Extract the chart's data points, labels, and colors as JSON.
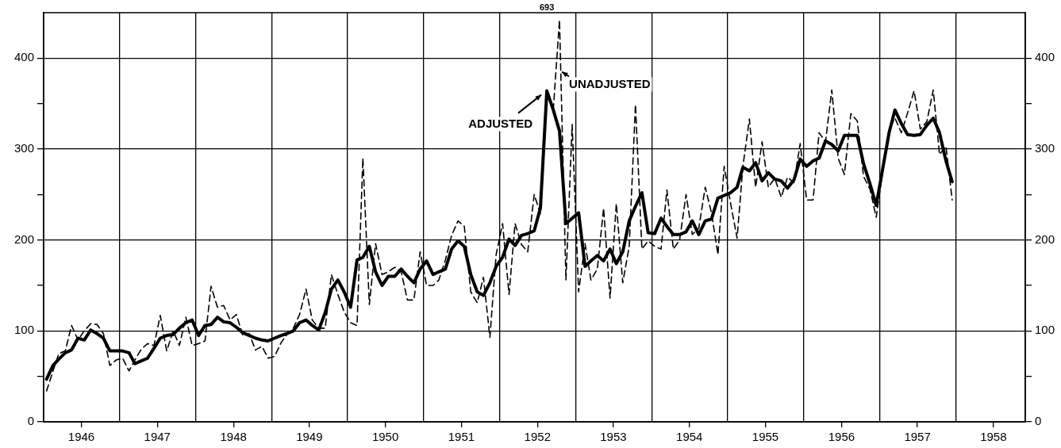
{
  "chart_data": {
    "type": "line",
    "x": [
      "1946-01-15",
      "1946-02-15",
      "1946-03-15",
      "1946-04-15",
      "1946-05-15",
      "1946-06-15",
      "1946-07-15",
      "1946-08-15",
      "1946-09-15",
      "1946-10-15",
      "1946-11-15",
      "1946-12-15",
      "1947-01-15",
      "1947-02-15",
      "1947-03-15",
      "1947-04-15",
      "1947-05-15",
      "1947-06-15",
      "1947-07-15",
      "1947-08-15",
      "1947-09-15",
      "1947-10-15",
      "1947-11-15",
      "1947-12-15",
      "1948-01-15",
      "1948-02-15",
      "1948-03-15",
      "1948-04-15",
      "1948-05-15",
      "1948-06-15",
      "1948-07-15",
      "1948-08-15",
      "1948-09-15",
      "1948-10-15",
      "1948-11-15",
      "1948-12-15",
      "1949-01-15",
      "1949-02-15",
      "1949-03-15",
      "1949-04-15",
      "1949-05-15",
      "1949-06-15",
      "1949-07-15",
      "1949-08-15",
      "1949-09-15",
      "1949-10-15",
      "1949-11-15",
      "1949-12-15",
      "1950-01-15",
      "1950-02-15",
      "1950-03-15",
      "1950-04-15",
      "1950-05-15",
      "1950-06-15",
      "1950-07-15",
      "1950-08-15",
      "1950-09-15",
      "1950-10-15",
      "1950-11-15",
      "1950-12-15",
      "1951-01-15",
      "1951-02-15",
      "1951-03-15",
      "1951-04-15",
      "1951-05-15",
      "1951-06-15",
      "1951-07-15",
      "1951-08-15",
      "1951-09-15",
      "1951-10-15",
      "1951-11-15",
      "1951-12-15",
      "1952-01-15",
      "1952-02-15",
      "1952-03-15",
      "1952-04-15",
      "1952-05-15",
      "1952-06-15",
      "1952-07-15",
      "1952-08-15",
      "1952-09-15",
      "1952-10-15",
      "1952-11-15",
      "1952-12-15",
      "1953-01-15",
      "1953-02-15",
      "1953-03-15",
      "1953-04-15",
      "1953-05-15",
      "1953-06-15",
      "1953-07-15",
      "1953-08-15",
      "1953-09-15",
      "1953-10-15",
      "1953-11-15",
      "1953-12-15",
      "1954-01-15",
      "1954-02-15",
      "1954-03-15",
      "1954-04-15",
      "1954-05-15",
      "1954-06-15",
      "1954-07-15",
      "1954-08-15",
      "1954-09-15",
      "1954-10-15",
      "1954-11-15",
      "1954-12-15",
      "1955-01-15",
      "1955-02-15",
      "1955-03-15",
      "1955-04-15",
      "1955-05-15",
      "1955-06-15",
      "1955-07-15",
      "1955-08-15",
      "1955-09-15",
      "1955-10-15",
      "1955-11-15",
      "1955-12-15",
      "1956-01-15",
      "1956-02-15",
      "1956-03-15",
      "1956-04-15",
      "1956-05-15",
      "1956-06-15",
      "1956-07-15",
      "1956-08-15",
      "1956-09-15",
      "1956-10-15",
      "1956-11-15",
      "1956-12-15",
      "1957-01-15",
      "1957-02-15",
      "1957-03-15",
      "1957-04-15",
      "1957-05-15",
      "1957-06-15",
      "1957-07-15",
      "1957-08-15",
      "1957-09-15",
      "1957-10-15",
      "1957-11-15",
      "1957-12-15"
    ],
    "series": [
      {
        "color": "#000000",
        "line_style": "solid",
        "values": [
          47,
          62,
          69,
          76,
          79,
          92,
          90,
          101,
          97,
          92,
          78,
          78,
          78,
          76,
          64,
          67,
          70,
          81,
          92,
          95,
          96,
          103,
          109,
          112,
          95,
          106,
          107,
          115,
          110,
          109,
          104,
          98,
          95,
          92,
          90,
          89,
          92,
          95,
          97,
          100,
          109,
          112,
          106,
          101,
          120,
          146,
          156,
          143,
          126,
          178,
          181,
          193,
          165,
          150,
          160,
          160,
          168,
          160,
          153,
          168,
          177,
          162,
          165,
          168,
          190,
          199,
          193,
          162,
          143,
          139,
          153,
          171,
          181,
          201,
          194,
          205,
          207,
          210,
          235,
          364,
          343,
          320,
          218,
          224,
          230,
          171,
          177,
          183,
          177,
          190,
          174,
          187,
          221,
          237,
          252,
          208,
          207,
          224,
          215,
          206,
          206,
          209,
          221,
          206,
          221,
          223,
          246,
          249,
          252,
          258,
          280,
          276,
          285,
          265,
          274,
          267,
          265,
          257,
          266,
          289,
          281,
          287,
          290,
          309,
          305,
          298,
          315,
          315,
          315,
          284,
          262,
          238,
          278,
          318,
          343,
          328,
          316,
          315,
          316,
          326,
          334,
          318,
          287,
          264
        ]
      },
      {
        "color": "#000000",
        "line_style": "dashed",
        "values": [
          34,
          56,
          75,
          78,
          106,
          90,
          100,
          108,
          107,
          97,
          62,
          68,
          70,
          56,
          68,
          80,
          86,
          84,
          117,
          78,
          100,
          84,
          115,
          84,
          86,
          89,
          149,
          126,
          128,
          112,
          118,
          95,
          97,
          79,
          83,
          70,
          72,
          87,
          96,
          103,
          118,
          146,
          112,
          103,
          103,
          162,
          140,
          121,
          109,
          106,
          290,
          129,
          196,
          162,
          165,
          170,
          165,
          134,
          134,
          187,
          150,
          150,
          156,
          178,
          205,
          221,
          215,
          143,
          131,
          159,
          93,
          184,
          218,
          140,
          218,
          195,
          187,
          250,
          229,
          null,
          343,
          442,
          156,
          327,
          143,
          196,
          156,
          168,
          235,
          136,
          240,
          153,
          193,
          349,
          190,
          199,
          193,
          190,
          255,
          190,
          200,
          250,
          206,
          213,
          258,
          230,
          184,
          281,
          240,
          202,
          281,
          333,
          258,
          308,
          258,
          268,
          247,
          269,
          263,
          306,
          244,
          244,
          318,
          308,
          365,
          290,
          272,
          339,
          331,
          270,
          256,
          225,
          275,
          322,
          334,
          318,
          340,
          364,
          322,
          330,
          365,
          294,
          303,
          244
        ]
      }
    ],
    "xlim": [
      "1946-01-01",
      "1958-12-01"
    ],
    "xticks": [
      {
        "value": "1946-07-01",
        "label": "1946"
      },
      {
        "value": "1947-01-01",
        "label": null
      },
      {
        "value": "1947-07-01",
        "label": "1947"
      },
      {
        "value": "1948-01-01",
        "label": null
      },
      {
        "value": "1948-07-01",
        "label": "1948"
      },
      {
        "value": "1949-01-01",
        "label": null
      },
      {
        "value": "1949-07-01",
        "label": "1949"
      },
      {
        "value": "1950-01-01",
        "label": null
      },
      {
        "value": "1950-07-01",
        "label": "1950"
      },
      {
        "value": "1951-01-01",
        "label": null
      },
      {
        "value": "1951-07-01",
        "label": "1951"
      },
      {
        "value": "1952-01-01",
        "label": null
      },
      {
        "value": "1952-07-01",
        "label": "1952"
      },
      {
        "value": "1953-01-01",
        "label": null
      },
      {
        "value": "1953-07-01",
        "label": "1953"
      },
      {
        "value": "1954-01-01",
        "label": null
      },
      {
        "value": "1954-07-01",
        "label": "1954"
      },
      {
        "value": "1955-01-01",
        "label": null
      },
      {
        "value": "1955-07-01",
        "label": "1955"
      },
      {
        "value": "1956-01-01",
        "label": null
      },
      {
        "value": "1956-07-01",
        "label": "1956"
      },
      {
        "value": "1957-01-01",
        "label": null
      },
      {
        "value": "1957-07-01",
        "label": "1957"
      },
      {
        "value": "1958-01-01",
        "label": null
      },
      {
        "value": "1958-07-01",
        "label": "1958"
      }
    ],
    "ylim": [
      0,
      450
    ],
    "yticks": [
      0,
      {
        "value": 50,
        "label": null
      },
      100,
      {
        "value": 150,
        "label": null
      },
      200,
      {
        "value": 250,
        "label": null
      },
      300,
      {
        "value": 350,
        "label": null
      },
      400
    ],
    "y2lim": [
      0,
      450
    ],
    "y2ticks": [
      0,
      {
        "value": 50,
        "label": null
      },
      100,
      {
        "value": 150,
        "label": null
      },
      200,
      {
        "value": 250,
        "label": null
      },
      300,
      {
        "value": 350,
        "label": null
      },
      400
    ],
    "grid": true,
    "legend": false,
    "marker": "none",
    "annotations": [
      {
        "text": "ADJUSTED",
        "x": "1952-08-15",
        "y": 364
      },
      {
        "text": "UNADJUSTED",
        "x": "1952-10-15",
        "y": 385
      },
      "693"
    ]
  }
}
